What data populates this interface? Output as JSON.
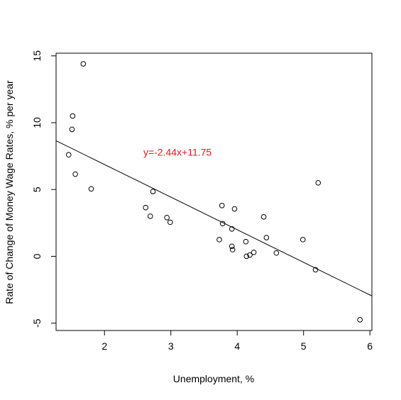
{
  "chart_data": {
    "type": "scatter",
    "title": "",
    "xlabel": "Unemployment, %",
    "ylabel": "Rate of Change of Money Wage Rates, % per year",
    "xlim": [
      1.27,
      6.03
    ],
    "ylim": [
      -5.55,
      15.2
    ],
    "xticks": [
      2,
      3,
      4,
      5,
      6
    ],
    "yticks": [
      -5,
      0,
      5,
      10,
      15
    ],
    "grid": false,
    "points": [
      {
        "x": 1.68,
        "y": 14.4
      },
      {
        "x": 1.52,
        "y": 10.5
      },
      {
        "x": 1.51,
        "y": 9.5
      },
      {
        "x": 1.46,
        "y": 7.6
      },
      {
        "x": 1.56,
        "y": 6.15
      },
      {
        "x": 1.8,
        "y": 5.05
      },
      {
        "x": 2.73,
        "y": 4.85
      },
      {
        "x": 2.62,
        "y": 3.65
      },
      {
        "x": 2.69,
        "y": 3.0
      },
      {
        "x": 2.94,
        "y": 2.9
      },
      {
        "x": 2.99,
        "y": 2.55
      },
      {
        "x": 3.77,
        "y": 3.8
      },
      {
        "x": 3.96,
        "y": 3.55
      },
      {
        "x": 3.78,
        "y": 2.45
      },
      {
        "x": 3.92,
        "y": 2.05
      },
      {
        "x": 3.73,
        "y": 1.25
      },
      {
        "x": 3.92,
        "y": 0.75
      },
      {
        "x": 3.93,
        "y": 0.5
      },
      {
        "x": 4.13,
        "y": 1.1
      },
      {
        "x": 4.14,
        "y": 0.0
      },
      {
        "x": 4.19,
        "y": 0.1
      },
      {
        "x": 4.25,
        "y": 0.3
      },
      {
        "x": 4.4,
        "y": 2.95
      },
      {
        "x": 4.44,
        "y": 1.4
      },
      {
        "x": 4.59,
        "y": 0.25
      },
      {
        "x": 4.99,
        "y": 1.25
      },
      {
        "x": 5.22,
        "y": 5.5
      },
      {
        "x": 5.18,
        "y": -1.0
      },
      {
        "x": 5.85,
        "y": -4.75
      }
    ],
    "regression": {
      "slope": -2.44,
      "intercept": 11.75
    },
    "annotations": [
      {
        "text": "y=-2.44x+11.75",
        "x": 3.1,
        "y": 7.8,
        "color": "#e41a1c"
      }
    ]
  }
}
